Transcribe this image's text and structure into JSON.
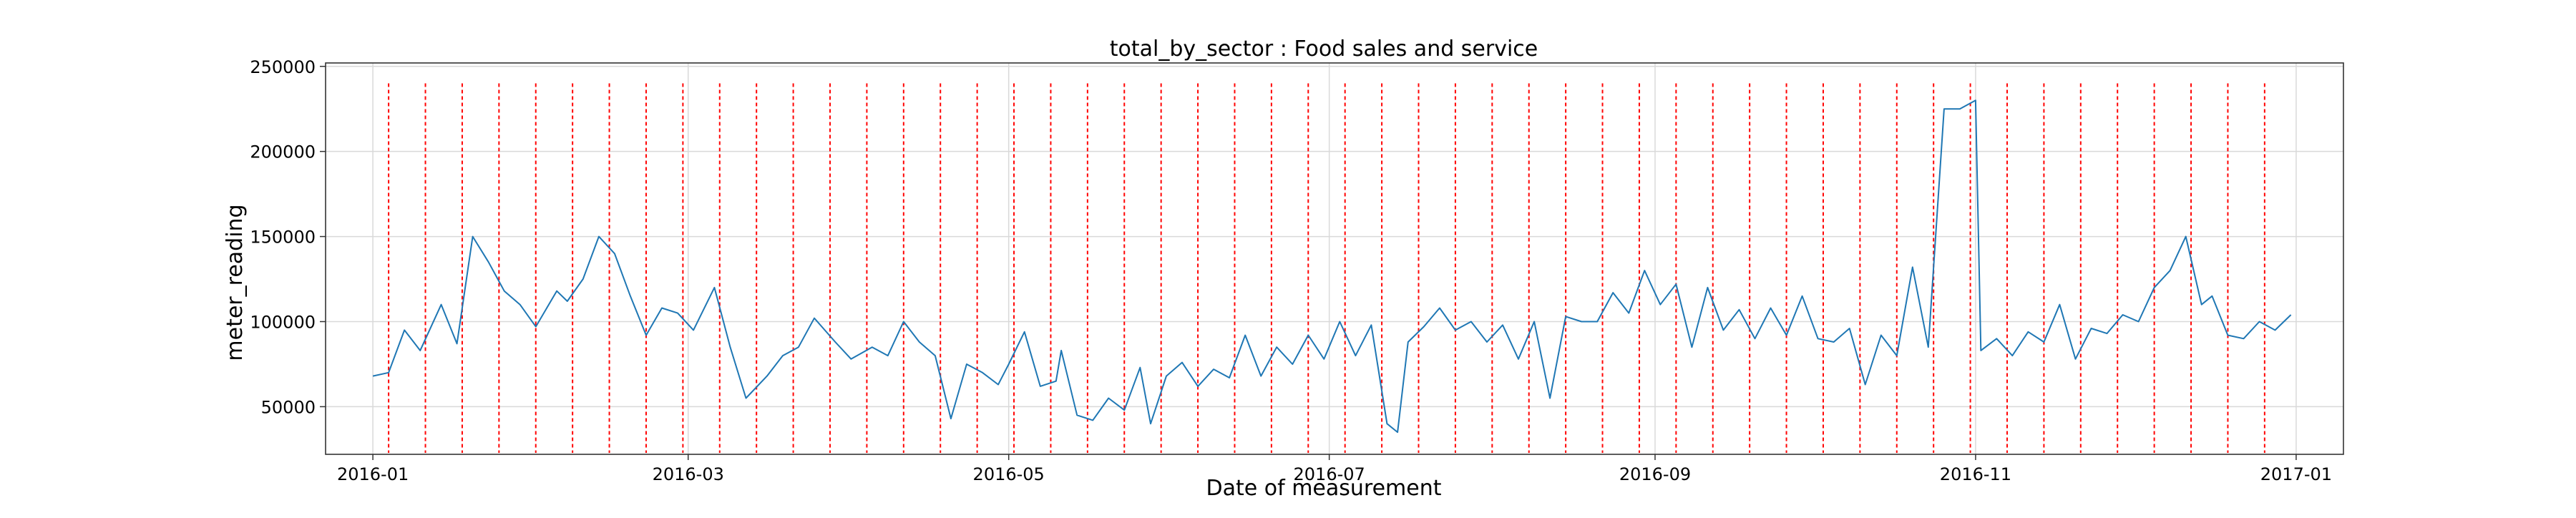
{
  "chart_data": {
    "type": "line",
    "title": "total_by_sector : Food sales and service",
    "xlabel": "Date of measurement",
    "ylabel": "meter_reading",
    "x_range": [
      "2015-12-23",
      "2017-01-10"
    ],
    "ylim": [
      22000,
      252000
    ],
    "grid": true,
    "legend": "none",
    "line_color": "#1f77b4",
    "vline_color": "#ff0000",
    "x_ticks": [
      {
        "date": "2016-01-01",
        "label": "2016-01"
      },
      {
        "date": "2016-03-01",
        "label": "2016-03"
      },
      {
        "date": "2016-05-01",
        "label": "2016-05"
      },
      {
        "date": "2016-07-01",
        "label": "2016-07"
      },
      {
        "date": "2016-09-01",
        "label": "2016-09"
      },
      {
        "date": "2016-11-01",
        "label": "2016-11"
      },
      {
        "date": "2017-01-01",
        "label": "2017-01"
      }
    ],
    "y_ticks": [
      {
        "value": 50000,
        "label": "50000"
      },
      {
        "value": 100000,
        "label": "100000"
      },
      {
        "value": 150000,
        "label": "150000"
      },
      {
        "value": 200000,
        "label": "200000"
      },
      {
        "value": 250000,
        "label": "250000"
      }
    ],
    "vertical_markers": {
      "first": "2016-01-04",
      "interval_days": 7,
      "count": 52,
      "y_top": 240000
    },
    "series": [
      {
        "x": [
          "2016-01-01",
          "2016-01-04",
          "2016-01-07",
          "2016-01-10",
          "2016-01-14",
          "2016-01-17",
          "2016-01-20",
          "2016-01-23",
          "2016-01-26",
          "2016-01-29",
          "2016-02-01",
          "2016-02-05",
          "2016-02-07",
          "2016-02-10",
          "2016-02-13",
          "2016-02-16",
          "2016-02-19",
          "2016-02-22",
          "2016-02-25",
          "2016-02-28",
          "2016-03-02",
          "2016-03-06",
          "2016-03-09",
          "2016-03-12",
          "2016-03-16",
          "2016-03-19",
          "2016-03-22",
          "2016-03-25",
          "2016-03-29",
          "2016-04-01",
          "2016-04-05",
          "2016-04-08",
          "2016-04-11",
          "2016-04-14",
          "2016-04-17",
          "2016-04-20",
          "2016-04-23",
          "2016-04-26",
          "2016-04-29",
          "2016-05-01",
          "2016-05-04",
          "2016-05-07",
          "2016-05-10",
          "2016-05-11",
          "2016-05-14",
          "2016-05-17",
          "2016-05-20",
          "2016-05-23",
          "2016-05-26",
          "2016-05-28",
          "2016-05-31",
          "2016-06-03",
          "2016-06-06",
          "2016-06-09",
          "2016-06-12",
          "2016-06-15",
          "2016-06-18",
          "2016-06-21",
          "2016-06-24",
          "2016-06-27",
          "2016-06-30",
          "2016-07-03",
          "2016-07-06",
          "2016-07-09",
          "2016-07-12",
          "2016-07-14",
          "2016-07-16",
          "2016-07-19",
          "2016-07-22",
          "2016-07-25",
          "2016-07-28",
          "2016-07-31",
          "2016-08-03",
          "2016-08-06",
          "2016-08-09",
          "2016-08-12",
          "2016-08-15",
          "2016-08-18",
          "2016-08-21",
          "2016-08-24",
          "2016-08-27",
          "2016-08-30",
          "2016-09-02",
          "2016-09-05",
          "2016-09-08",
          "2016-09-11",
          "2016-09-14",
          "2016-09-17",
          "2016-09-20",
          "2016-09-23",
          "2016-09-26",
          "2016-09-29",
          "2016-10-02",
          "2016-10-05",
          "2016-10-08",
          "2016-10-11",
          "2016-10-14",
          "2016-10-17",
          "2016-10-20",
          "2016-10-23",
          "2016-10-26",
          "2016-10-29",
          "2016-11-01",
          "2016-11-02",
          "2016-11-05",
          "2016-11-08",
          "2016-11-11",
          "2016-11-14",
          "2016-11-17",
          "2016-11-20",
          "2016-11-23",
          "2016-11-26",
          "2016-11-29",
          "2016-12-02",
          "2016-12-05",
          "2016-12-08",
          "2016-12-11",
          "2016-12-14",
          "2016-12-16",
          "2016-12-19",
          "2016-12-22",
          "2016-12-25",
          "2016-12-28",
          "2016-12-31"
        ],
        "y": [
          68000,
          70000,
          95000,
          83000,
          110000,
          87000,
          150000,
          135000,
          118000,
          110000,
          97000,
          118000,
          112000,
          125000,
          150000,
          140000,
          115000,
          92000,
          108000,
          105000,
          95000,
          120000,
          85000,
          55000,
          68000,
          80000,
          85000,
          102000,
          88000,
          78000,
          85000,
          80000,
          100000,
          88000,
          80000,
          43000,
          75000,
          70000,
          63000,
          75000,
          94000,
          62000,
          65000,
          83000,
          45000,
          42000,
          55000,
          48000,
          73000,
          40000,
          68000,
          76000,
          62000,
          72000,
          67000,
          92000,
          68000,
          85000,
          75000,
          92000,
          78000,
          100000,
          80000,
          98000,
          40000,
          35000,
          88000,
          97000,
          108000,
          95000,
          100000,
          88000,
          98000,
          78000,
          100000,
          55000,
          103000,
          100000,
          100000,
          117000,
          105000,
          130000,
          110000,
          122000,
          85000,
          120000,
          95000,
          107000,
          90000,
          108000,
          92000,
          115000,
          90000,
          88000,
          96000,
          63000,
          92000,
          80000,
          132000,
          85000,
          225000,
          225000,
          230000,
          83000,
          90000,
          80000,
          94000,
          88000,
          110000,
          78000,
          96000,
          93000,
          104000,
          100000,
          120000,
          130000,
          150000,
          110000,
          115000,
          92000,
          90000,
          100000,
          95000,
          104000
        ]
      }
    ]
  }
}
